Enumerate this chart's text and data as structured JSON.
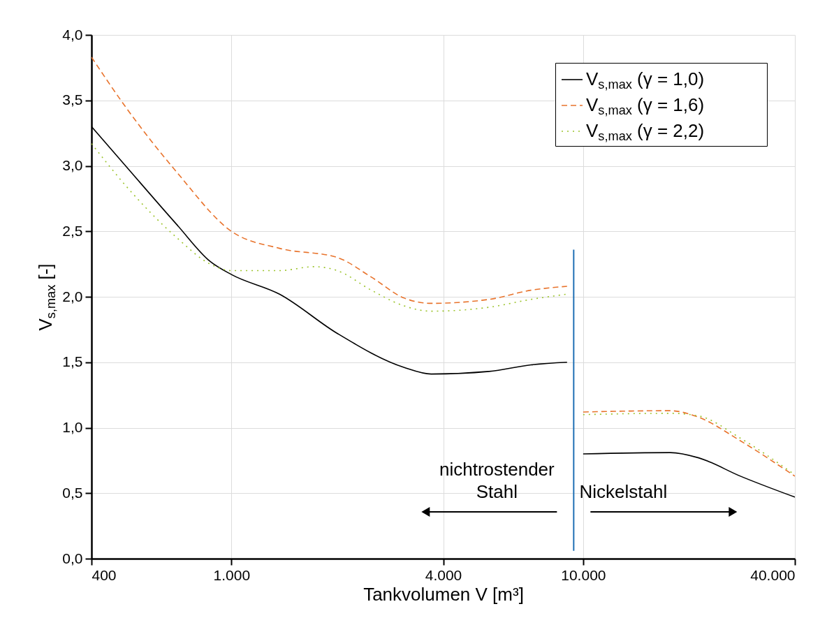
{
  "chart_data": {
    "type": "line",
    "xlabel": "Tankvolumen V [m³]",
    "ylabel": "V$_{s,max}$ [-]",
    "log": "x",
    "xlim": [
      400,
      40000
    ],
    "xticks": [
      400,
      {
        "value": 1000,
        "label": "1.000"
      },
      {
        "value": 4000,
        "label": "4.000"
      },
      {
        "value": 10000,
        "label": "10.000"
      },
      {
        "value": 40000,
        "label": "40.000"
      }
    ],
    "ylim": [
      0,
      4
    ],
    "yticks": [
      {
        "value": 0,
        "label": "0,0"
      },
      {
        "value": 0.5,
        "label": "0,5"
      },
      {
        "value": 1,
        "label": "1,0"
      },
      {
        "value": 1.5,
        "label": "1,5"
      },
      {
        "value": 2,
        "label": "2,0"
      },
      {
        "value": 2.5,
        "label": "2,5"
      },
      {
        "value": 3,
        "label": "3,0"
      },
      {
        "value": 3.5,
        "label": "3,5"
      },
      {
        "value": 4,
        "label": "4,0"
      }
    ],
    "grid": true,
    "legend": "top right",
    "series": [
      {
        "name": "V$_{s,max}$ (γ = 1,0)",
        "color": "#000000",
        "line_style": "solid",
        "x": [
          400,
          500,
          700,
          870,
          1000,
          1370,
          2000,
          3100,
          3700,
          5400,
          7100,
          9000,
          9500,
          10000,
          17700,
          21300,
          28000,
          40000
        ],
        "values": [
          3.3,
          3.0,
          2.55,
          2.27,
          2.17,
          2.02,
          1.72,
          1.46,
          1.41,
          1.43,
          1.48,
          1.5,
          null,
          0.8,
          0.81,
          0.77,
          0.63,
          0.47
        ]
      },
      {
        "name": "V$_{s,max}$ (γ = 1,6)",
        "color": "#e8732c",
        "line_style": "dashed",
        "x": [
          400,
          500,
          700,
          1000,
          1370,
          2000,
          2500,
          3100,
          3700,
          5400,
          7100,
          9000,
          9500,
          10000,
          17700,
          21300,
          28000,
          40000
        ],
        "values": [
          3.83,
          3.45,
          2.95,
          2.5,
          2.37,
          2.3,
          2.15,
          1.99,
          1.95,
          1.98,
          2.05,
          2.08,
          null,
          1.12,
          1.13,
          1.08,
          0.9,
          0.63
        ]
      },
      {
        "name": "V$_{s,max}$ (γ = 2,2)",
        "color": "#9cc42c",
        "line_style": "dotted",
        "x": [
          400,
          500,
          700,
          870,
          1000,
          1370,
          1720,
          2000,
          2500,
          3100,
          3700,
          5400,
          7100,
          9000,
          9500,
          10000,
          17700,
          21300,
          28000,
          40000
        ],
        "values": [
          3.17,
          2.85,
          2.45,
          2.25,
          2.2,
          2.2,
          2.23,
          2.2,
          2.05,
          1.93,
          1.89,
          1.92,
          1.98,
          2.02,
          null,
          1.1,
          1.11,
          1.09,
          0.92,
          0.64
        ]
      }
    ],
    "ref_lines": [
      {
        "axis": "x",
        "value": 9400,
        "color": "#1f6fb4"
      }
    ],
    "annotations": [
      "nichtrostender\nStahl",
      "Nickelstahl"
    ]
  }
}
